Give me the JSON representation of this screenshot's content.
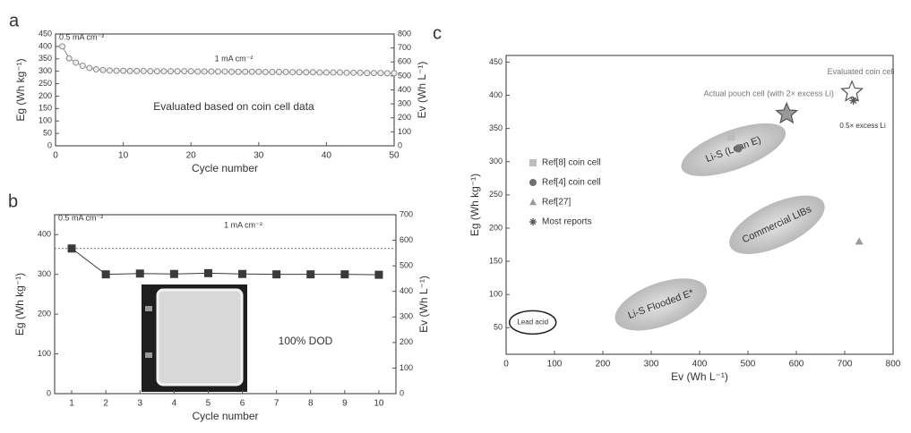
{
  "chart_data": [
    {
      "type": "line",
      "label": "a",
      "xlabel": "Cycle number",
      "ylabel": "Eg (Wh kg⁻¹)",
      "y2label": "Ev (Wh L⁻¹)",
      "xlim": [
        0,
        50
      ],
      "xticks": [
        0,
        10,
        20,
        30,
        40,
        50
      ],
      "ylim": [
        0,
        450
      ],
      "yticks": [
        0,
        50,
        100,
        150,
        200,
        250,
        300,
        350,
        400,
        450
      ],
      "y2lim": [
        0,
        800
      ],
      "y2ticks": [
        0,
        100,
        200,
        300,
        400,
        500,
        600,
        700,
        800
      ],
      "x": [
        1,
        2,
        3,
        4,
        5,
        6,
        7,
        8,
        9,
        10,
        11,
        12,
        13,
        14,
        15,
        16,
        17,
        18,
        19,
        20,
        21,
        22,
        23,
        24,
        25,
        26,
        27,
        28,
        29,
        30,
        31,
        32,
        33,
        34,
        35,
        36,
        37,
        38,
        39,
        40,
        41,
        42,
        43,
        44,
        45,
        46,
        47,
        48,
        49,
        50
      ],
      "series": [
        {
          "marker": "circle-open",
          "color": "#8a8a8a",
          "values": [
            400,
            352,
            335,
            322,
            313,
            308,
            305,
            303,
            302,
            302,
            301,
            301,
            301,
            300,
            300,
            300,
            300,
            300,
            300,
            300,
            299,
            299,
            299,
            299,
            299,
            298,
            298,
            298,
            298,
            298,
            297,
            297,
            297,
            297,
            296,
            296,
            296,
            296,
            295,
            295,
            295,
            295,
            294,
            294,
            294,
            293,
            293,
            293,
            292,
            292
          ]
        }
      ],
      "annotations": [
        "0.5 mA cm⁻²",
        "1 mA cm⁻²",
        "Evaluated based on coin cell data"
      ]
    },
    {
      "type": "line",
      "label": "b",
      "xlabel": "Cycle number",
      "ylabel": "Eg (Wh kg⁻¹)",
      "y2label": "Ev (Wh L⁻¹)",
      "xlim": [
        0.5,
        10.5
      ],
      "xticks": [
        1,
        2,
        3,
        4,
        5,
        6,
        7,
        8,
        9,
        10
      ],
      "ylim": [
        0,
        450
      ],
      "yticks": [
        0,
        100,
        200,
        300,
        400
      ],
      "y2lim": [
        0,
        700
      ],
      "y2ticks": [
        0,
        100,
        200,
        300,
        400,
        500,
        600,
        700
      ],
      "x": [
        1,
        2,
        3,
        4,
        5,
        6,
        7,
        8,
        9,
        10
      ],
      "series": [
        {
          "marker": "square",
          "color": "#3a3a3a",
          "values": [
            365,
            300,
            302,
            301,
            303,
            301,
            300,
            300,
            300,
            299
          ]
        }
      ],
      "reference_line": 365,
      "annotations": [
        "0.5 mA cm⁻²",
        "1 mA cm⁻²",
        "100% DOD"
      ]
    },
    {
      "type": "scatter",
      "label": "c",
      "xlabel": "Ev (Wh L⁻¹)",
      "ylabel": "Eg (Wh kg⁻¹)",
      "xlim": [
        0,
        800
      ],
      "xticks": [
        0,
        100,
        200,
        300,
        400,
        500,
        600,
        700,
        800
      ],
      "ylim": [
        10,
        460
      ],
      "yticks": [
        50,
        100,
        150,
        200,
        250,
        300,
        350,
        400,
        450
      ],
      "series": [
        {
          "name": "Ref[8] coin cell",
          "marker": "square",
          "color": "#bdbdbd",
          "x": [
            465
          ],
          "values": [
            338
          ]
        },
        {
          "name": "Ref[4] coin cell",
          "marker": "circle",
          "color": "#6e6e6e",
          "x": [
            480
          ],
          "values": [
            320
          ]
        },
        {
          "name": "Ref[27]",
          "marker": "triangle",
          "color": "#9a9a9a",
          "x": [
            730
          ],
          "values": [
            180
          ]
        },
        {
          "name": "Most reports",
          "marker": "asterisk",
          "color": "#555555",
          "x": [
            718
          ],
          "values": [
            392
          ]
        }
      ],
      "regions": [
        {
          "label": "Li-S (Lean E)",
          "x": 470,
          "y": 318
        },
        {
          "label": "Commercial LIBs",
          "x": 560,
          "y": 205
        },
        {
          "label": "Li-S Flooded E*",
          "x": 320,
          "y": 85
        },
        {
          "label": "Lead acid",
          "x": 55,
          "y": 58
        }
      ],
      "highlights": [
        {
          "label": "Actual pouch cell (with 2× excess Li)",
          "x": 580,
          "y": 372
        },
        {
          "label": "Evaluated coin cell",
          "x": 715,
          "y": 405
        }
      ],
      "annotation": "0.5× excess Li"
    }
  ]
}
